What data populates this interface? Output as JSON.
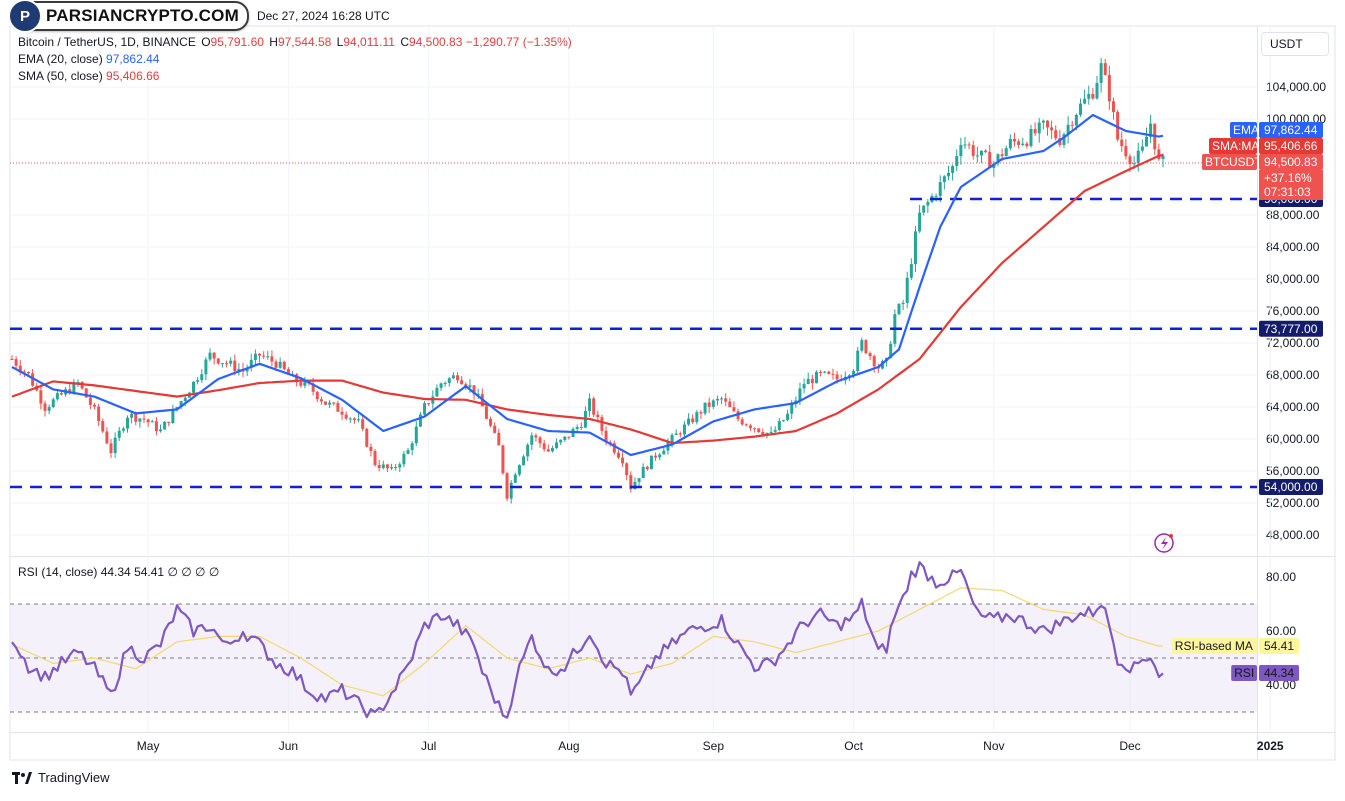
{
  "header": {
    "logo_text": "PARSIANCRYPTO.COM",
    "logo_badge": "P",
    "date_text": "Dec 27, 2024 16:28 UTC",
    "symbol": "Bitcoin / TetherUS, 1D, BINANCE",
    "open_label": "O",
    "open": "95,791.60",
    "high_label": "H",
    "high": "97,544.58",
    "low_label": "L",
    "low": "94,011.11",
    "close_label": "C",
    "close": "94,500.83",
    "change": "−1,290.77 (−1.35%)",
    "ema_name": "EMA (20, close)",
    "ema_value": "97,862.44",
    "sma_name": "SMA (50, close)",
    "sma_value": "95,406.66",
    "currency": "USDT"
  },
  "rsi_legend": {
    "name": "RSI (14, close)",
    "rsi_value": "44.34",
    "ma_value": "54.41",
    "extra": "∅ ∅ ∅ ∅"
  },
  "footer": {
    "brand": "TradingView"
  },
  "colors": {
    "candle_up": "#26a69a",
    "candle_down": "#ef5350",
    "ema": "#2962ff",
    "sma": "#e53935",
    "rsi": "#7e57c2",
    "rsi_ma": "#f5d76e",
    "level": "#0c22d6",
    "rsi_band": "#ede7f6"
  },
  "chart_data": [
    {
      "type": "candlestick",
      "title": "Bitcoin / TetherUS, 1D, BINANCE",
      "x_labels": [
        "May",
        "Jun",
        "Jul",
        "Aug",
        "Sep",
        "Oct",
        "Nov",
        "Dec",
        "2025"
      ],
      "y_ticks": [
        48000,
        52000,
        56000,
        60000,
        64000,
        68000,
        72000,
        76000,
        80000,
        84000,
        88000,
        100000,
        104000
      ],
      "y_tick_labels": [
        "48,000.00",
        "52,000.00",
        "56,000.00",
        "60,000.00",
        "64,000.00",
        "68,000.00",
        "72,000.00",
        "76,000.00",
        "80,000.00",
        "84,000.00",
        "88,000.00",
        "100,000.00",
        "104,000.00"
      ],
      "ylim": [
        46000,
        108000
      ],
      "levels": [
        {
          "value": 90000,
          "label": "90,000.00"
        },
        {
          "value": 73777,
          "label": "73,777.00"
        },
        {
          "value": 54000,
          "label": "54,000.00"
        }
      ],
      "price_tags": [
        {
          "name": "EMA",
          "value": 97862.44,
          "label": "97,862.44"
        },
        {
          "name": "SMA:MA",
          "value": 95406.66,
          "label": "95,406.66"
        },
        {
          "name": "BTCUSDT",
          "value": 94500.83,
          "label": "94,500.83",
          "extra": [
            "+37.16%",
            "07:31:03"
          ]
        }
      ],
      "close_anchors": [
        [
          0,
          70000
        ],
        [
          4,
          68000
        ],
        [
          8,
          64000
        ],
        [
          12,
          65500
        ],
        [
          16,
          67000
        ],
        [
          20,
          63500
        ],
        [
          24,
          58500
        ],
        [
          28,
          63000
        ],
        [
          32,
          62500
        ],
        [
          36,
          61000
        ],
        [
          40,
          64000
        ],
        [
          44,
          67000
        ],
        [
          48,
          70500
        ],
        [
          52,
          69500
        ],
        [
          56,
          68500
        ],
        [
          60,
          70500
        ],
        [
          64,
          69500
        ],
        [
          68,
          67500
        ],
        [
          72,
          66500
        ],
        [
          76,
          64500
        ],
        [
          80,
          63500
        ],
        [
          84,
          62000
        ],
        [
          88,
          57000
        ],
        [
          92,
          56000
        ],
        [
          96,
          58500
        ],
        [
          100,
          64000
        ],
        [
          104,
          67000
        ],
        [
          108,
          68000
        ],
        [
          112,
          66000
        ],
        [
          114,
          64000
        ],
        [
          118,
          59000
        ],
        [
          120,
          53000
        ],
        [
          122,
          56000
        ],
        [
          126,
          60500
        ],
        [
          130,
          58500
        ],
        [
          134,
          60000
        ],
        [
          138,
          62000
        ],
        [
          140,
          64500
        ],
        [
          144,
          60000
        ],
        [
          148,
          57500
        ],
        [
          150,
          54000
        ],
        [
          152,
          55500
        ],
        [
          156,
          58000
        ],
        [
          160,
          60000
        ],
        [
          164,
          62000
        ],
        [
          168,
          64000
        ],
        [
          172,
          65000
        ],
        [
          176,
          62500
        ],
        [
          180,
          61500
        ],
        [
          184,
          60500
        ],
        [
          188,
          63000
        ],
        [
          192,
          67000
        ],
        [
          196,
          68000
        ],
        [
          200,
          67500
        ],
        [
          204,
          69000
        ],
        [
          206,
          72000
        ],
        [
          210,
          69000
        ],
        [
          212,
          69500
        ],
        [
          214,
          75500
        ],
        [
          216,
          77000
        ],
        [
          218,
          82500
        ],
        [
          220,
          88000
        ],
        [
          224,
          91000
        ],
        [
          228,
          94000
        ],
        [
          230,
          97500
        ],
        [
          234,
          95500
        ],
        [
          238,
          94500
        ],
        [
          242,
          97000
        ],
        [
          246,
          97500
        ],
        [
          250,
          99000
        ],
        [
          254,
          97500
        ],
        [
          258,
          101000
        ],
        [
          262,
          103500
        ],
        [
          264,
          106500
        ],
        [
          266,
          103000
        ],
        [
          268,
          97500
        ],
        [
          272,
          94500
        ],
        [
          274,
          96000
        ],
        [
          276,
          99500
        ],
        [
          278,
          94500
        ]
      ],
      "ema_anchors": [
        [
          0,
          69000
        ],
        [
          10,
          66200
        ],
        [
          20,
          65300
        ],
        [
          30,
          63200
        ],
        [
          40,
          63700
        ],
        [
          50,
          67500
        ],
        [
          60,
          69400
        ],
        [
          70,
          67600
        ],
        [
          80,
          64900
        ],
        [
          90,
          61000
        ],
        [
          100,
          62800
        ],
        [
          110,
          66600
        ],
        [
          120,
          62500
        ],
        [
          130,
          61000
        ],
        [
          140,
          60800
        ],
        [
          150,
          58000
        ],
        [
          160,
          59300
        ],
        [
          170,
          62200
        ],
        [
          180,
          63700
        ],
        [
          190,
          64500
        ],
        [
          200,
          67200
        ],
        [
          210,
          69000
        ],
        [
          215,
          71200
        ],
        [
          220,
          79000
        ],
        [
          225,
          86500
        ],
        [
          230,
          91500
        ],
        [
          240,
          95000
        ],
        [
          250,
          96000
        ],
        [
          255,
          97700
        ],
        [
          262,
          100500
        ],
        [
          270,
          98500
        ],
        [
          278,
          97800
        ]
      ],
      "sma_anchors": [
        [
          0,
          65300
        ],
        [
          10,
          67200
        ],
        [
          20,
          66700
        ],
        [
          30,
          66000
        ],
        [
          40,
          65300
        ],
        [
          50,
          66100
        ],
        [
          60,
          67000
        ],
        [
          70,
          67300
        ],
        [
          80,
          67300
        ],
        [
          90,
          65800
        ],
        [
          100,
          65000
        ],
        [
          110,
          64900
        ],
        [
          120,
          63700
        ],
        [
          130,
          63000
        ],
        [
          140,
          62500
        ],
        [
          150,
          61200
        ],
        [
          160,
          59500
        ],
        [
          170,
          59800
        ],
        [
          180,
          60300
        ],
        [
          190,
          61000
        ],
        [
          200,
          63200
        ],
        [
          210,
          66200
        ],
        [
          220,
          70000
        ],
        [
          230,
          76500
        ],
        [
          240,
          82000
        ],
        [
          250,
          86500
        ],
        [
          260,
          91000
        ],
        [
          270,
          93500
        ],
        [
          278,
          95400
        ]
      ]
    },
    {
      "type": "line",
      "title": "RSI (14, close)",
      "y_ticks": [
        40,
        60,
        80
      ],
      "y_tick_labels": [
        "40.00",
        "60.00",
        "80.00"
      ],
      "band": [
        30,
        70
      ],
      "midline": 50,
      "ylim": [
        25,
        87
      ],
      "price_tags": [
        {
          "name": "RSI-based MA",
          "value": 54.41,
          "label": "54.41"
        },
        {
          "name": "RSI",
          "value": 44.34,
          "label": "44.34"
        }
      ],
      "rsi_anchors": [
        [
          0,
          58
        ],
        [
          4,
          47
        ],
        [
          8,
          43
        ],
        [
          12,
          48
        ],
        [
          16,
          52
        ],
        [
          20,
          46
        ],
        [
          24,
          36
        ],
        [
          28,
          54
        ],
        [
          32,
          50
        ],
        [
          36,
          55
        ],
        [
          40,
          68
        ],
        [
          44,
          60
        ],
        [
          48,
          62
        ],
        [
          52,
          54
        ],
        [
          56,
          60
        ],
        [
          60,
          55
        ],
        [
          64,
          48
        ],
        [
          68,
          45
        ],
        [
          72,
          38
        ],
        [
          76,
          35
        ],
        [
          80,
          38
        ],
        [
          84,
          33
        ],
        [
          88,
          28
        ],
        [
          92,
          37
        ],
        [
          96,
          47
        ],
        [
          100,
          62
        ],
        [
          104,
          66
        ],
        [
          108,
          62
        ],
        [
          112,
          55
        ],
        [
          114,
          45
        ],
        [
          118,
          32
        ],
        [
          120,
          28
        ],
        [
          122,
          42
        ],
        [
          126,
          58
        ],
        [
          130,
          45
        ],
        [
          134,
          47
        ],
        [
          138,
          55
        ],
        [
          140,
          60
        ],
        [
          144,
          48
        ],
        [
          148,
          45
        ],
        [
          150,
          36
        ],
        [
          152,
          40
        ],
        [
          156,
          50
        ],
        [
          160,
          55
        ],
        [
          164,
          60
        ],
        [
          168,
          62
        ],
        [
          172,
          64
        ],
        [
          176,
          55
        ],
        [
          180,
          47
        ],
        [
          184,
          48
        ],
        [
          188,
          55
        ],
        [
          192,
          63
        ],
        [
          196,
          66
        ],
        [
          200,
          62
        ],
        [
          204,
          65
        ],
        [
          206,
          70
        ],
        [
          210,
          52
        ],
        [
          212,
          54
        ],
        [
          214,
          66
        ],
        [
          216,
          72
        ],
        [
          218,
          81
        ],
        [
          220,
          84
        ],
        [
          224,
          78
        ],
        [
          228,
          80
        ],
        [
          230,
          82
        ],
        [
          234,
          66
        ],
        [
          238,
          64
        ],
        [
          242,
          66
        ],
        [
          246,
          63
        ],
        [
          250,
          60
        ],
        [
          254,
          63
        ],
        [
          258,
          66
        ],
        [
          262,
          67
        ],
        [
          264,
          71
        ],
        [
          266,
          62
        ],
        [
          268,
          50
        ],
        [
          272,
          46
        ],
        [
          274,
          50
        ],
        [
          276,
          51
        ],
        [
          278,
          44
        ]
      ],
      "rsi_ma_anchors": [
        [
          0,
          55
        ],
        [
          10,
          48
        ],
        [
          20,
          50
        ],
        [
          30,
          46
        ],
        [
          40,
          56
        ],
        [
          50,
          58
        ],
        [
          60,
          58
        ],
        [
          70,
          50
        ],
        [
          80,
          40
        ],
        [
          90,
          36
        ],
        [
          100,
          48
        ],
        [
          110,
          62
        ],
        [
          120,
          50
        ],
        [
          130,
          46
        ],
        [
          140,
          50
        ],
        [
          150,
          44
        ],
        [
          160,
          48
        ],
        [
          170,
          58
        ],
        [
          180,
          56
        ],
        [
          190,
          52
        ],
        [
          200,
          56
        ],
        [
          210,
          60
        ],
        [
          220,
          68
        ],
        [
          230,
          76
        ],
        [
          240,
          75
        ],
        [
          250,
          68
        ],
        [
          260,
          66
        ],
        [
          270,
          58
        ],
        [
          278,
          54.4
        ]
      ]
    }
  ]
}
